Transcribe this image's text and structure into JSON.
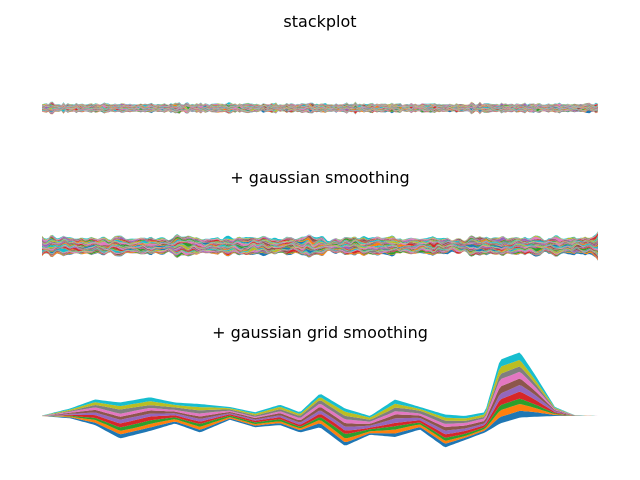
{
  "palette": [
    "#1f77b4",
    "#ff7f0e",
    "#2ca02c",
    "#d62728",
    "#9467bd",
    "#8c564b",
    "#e377c2",
    "#7f7f7f",
    "#bcbd22",
    "#17becf"
  ],
  "chart_data": [
    {
      "type": "area",
      "title": "stackplot",
      "stacked": true,
      "axis_visible": false,
      "n_series": 100,
      "n_points": 400,
      "x_range": [
        0,
        399
      ],
      "pattern": "high-frequency random noise around a flat baseline, small amplitude with a few isolated spikes"
    },
    {
      "type": "area",
      "title": "+ gaussian smoothing",
      "stacked": true,
      "axis_visible": false,
      "n_series": 100,
      "n_points": 400,
      "x_range": [
        0,
        399
      ],
      "pattern": "same noise lightly smoothed, wider per-series swings, symmetric around baseline"
    },
    {
      "type": "area",
      "title": "+ gaussian grid smoothing",
      "stacked": true,
      "axis_visible": false,
      "n_series": 100,
      "n_points": 400,
      "x_range": [
        0,
        399
      ],
      "pattern": "smooth wavy streams that taper to zero at both ends, large peak near the right end",
      "envelope": {
        "x": [
          0,
          40,
          70,
          95,
          120,
          150,
          175,
          200,
          230,
          255,
          280,
          300,
          320,
          345,
          370,
          395,
          420,
          445,
          465,
          485,
          500,
          520,
          535,
          555,
          575,
          598
        ],
        "upper": [
          0,
          0.0,
          0.1,
          0.22,
          0.18,
          0.25,
          0.18,
          0.16,
          0.12,
          0.05,
          0.15,
          0.05,
          0.3,
          0.1,
          0.0,
          0.22,
          0.12,
          0.02,
          0.0,
          0.05,
          0.75,
          0.85,
          0.55,
          0.12,
          0.01,
          0
        ],
        "lower": [
          0,
          0.0,
          -0.03,
          -0.12,
          -0.3,
          -0.2,
          -0.1,
          -0.22,
          -0.05,
          -0.15,
          -0.12,
          -0.22,
          -0.15,
          -0.4,
          -0.25,
          -0.28,
          -0.18,
          -0.42,
          -0.32,
          -0.22,
          -0.1,
          -0.02,
          -0.01,
          0.0,
          0.0,
          0
        ]
      }
    }
  ]
}
